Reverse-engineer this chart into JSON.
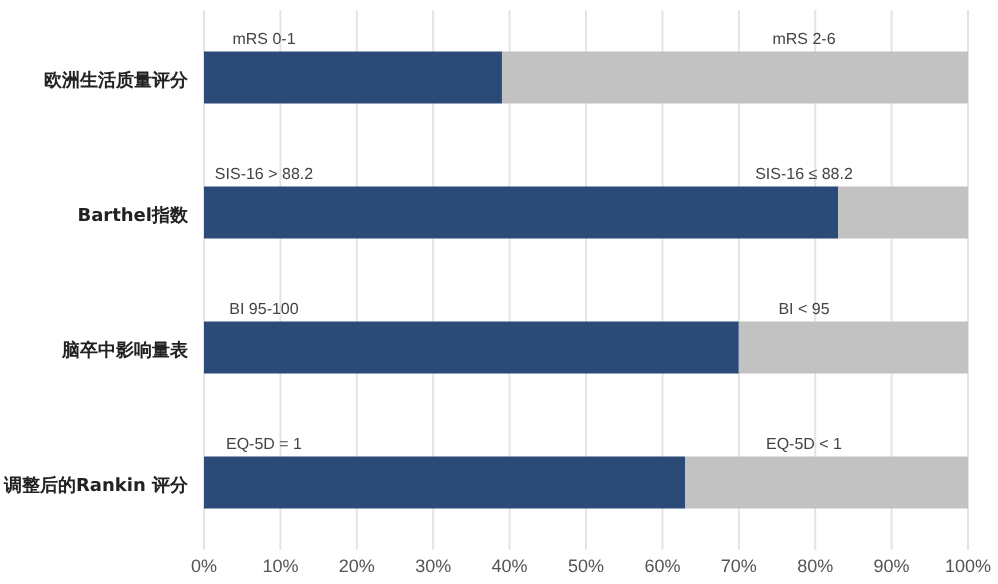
{
  "chart_data": {
    "type": "bar",
    "orientation": "horizontal",
    "stacked": true,
    "categories": [
      "欧洲生活质量评分",
      "Barthel指数",
      "脑卒中影响量表",
      "调整后的Rankin 评分"
    ],
    "series": [
      {
        "color": "#2c4a78",
        "values": [
          39,
          83,
          70,
          63
        ]
      },
      {
        "color": "#c2c2c2",
        "values": [
          61,
          17,
          30,
          37
        ]
      }
    ],
    "xlim": [
      0,
      100
    ],
    "xticks": [
      {
        "value": 0,
        "label": "0%"
      },
      {
        "value": 10,
        "label": "10%"
      },
      {
        "value": 20,
        "label": "20%"
      },
      {
        "value": 30,
        "label": "30%"
      },
      {
        "value": 40,
        "label": "40%"
      },
      {
        "value": 50,
        "label": "50%"
      },
      {
        "value": 60,
        "label": "60%"
      },
      {
        "value": 70,
        "label": "70%"
      },
      {
        "value": 80,
        "label": "80%"
      },
      {
        "value": 90,
        "label": "90%"
      },
      {
        "value": 100,
        "label": "100%"
      }
    ],
    "grid": "x",
    "annotations": [
      "mRS 0-1",
      "mRS 2-6",
      "SIS-16 > 88.2",
      "SIS-16 ≤ 88.2",
      "BI 95-100",
      "BI < 95",
      "EQ-5D = 1",
      "EQ-5D < 1"
    ]
  }
}
